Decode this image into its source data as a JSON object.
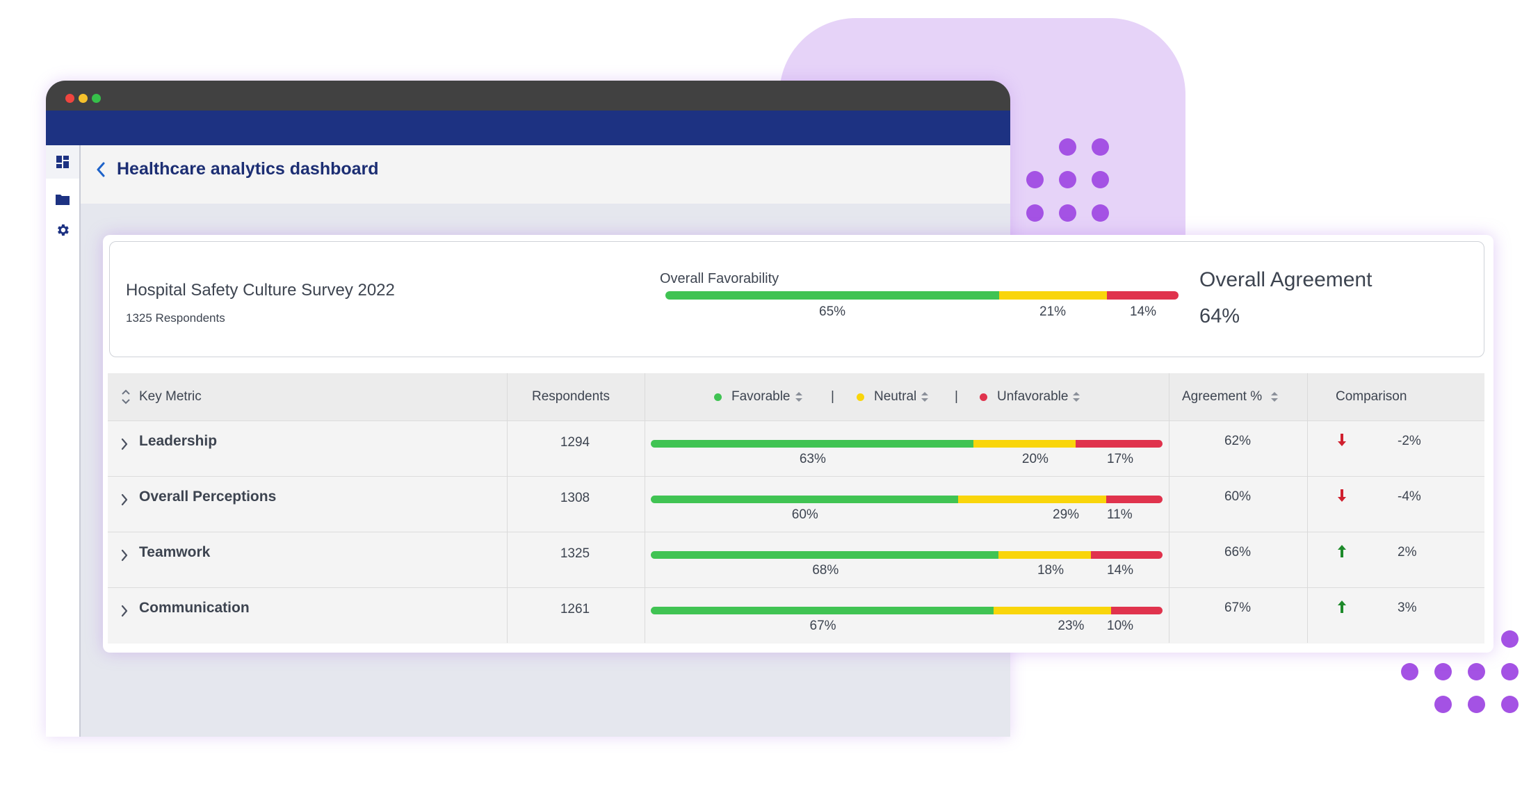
{
  "app": {
    "title": "Healthcare analytics dashboard"
  },
  "sidebar": {
    "items": [
      {
        "icon": "dashboard-icon"
      },
      {
        "icon": "folder-icon"
      },
      {
        "icon": "gear-icon"
      }
    ]
  },
  "summary": {
    "survey_title": "Hospital Safety Culture Survey 2022",
    "respondents": "1325 Respondents",
    "favorability_label": "Overall Favorability",
    "favorable": 65,
    "neutral": 21,
    "unfavorable": 14,
    "favorable_pct": "65%",
    "neutral_pct": "21%",
    "unfavorable_pct": "14%",
    "agreement_label": "Overall Agreement",
    "agreement_value": "64%"
  },
  "table": {
    "headers": {
      "metric": "Key Metric",
      "respondents": "Respondents",
      "favorable": "Favorable",
      "separator": "|",
      "neutral": "Neutral",
      "unfavorable": "Unfavorable",
      "agreement": "Agreement %",
      "comparison": "Comparison"
    },
    "rows": [
      {
        "metric": "Leadership",
        "respondents": "1294",
        "favorable": 63,
        "neutral": 20,
        "unfavorable": 17,
        "favorable_pct": "63%",
        "neutral_pct": "20%",
        "unfavorable_pct": "17%",
        "agreement": "62%",
        "trend": "down",
        "comparison": "-2%"
      },
      {
        "metric": "Overall Perceptions",
        "respondents": "1308",
        "favorable": 60,
        "neutral": 29,
        "unfavorable": 11,
        "favorable_pct": "60%",
        "neutral_pct": "29%",
        "unfavorable_pct": "11%",
        "agreement": "60%",
        "trend": "down",
        "comparison": "-4%"
      },
      {
        "metric": "Teamwork",
        "respondents": "1325",
        "favorable": 68,
        "neutral": 18,
        "unfavorable": 14,
        "favorable_pct": "68%",
        "neutral_pct": "18%",
        "unfavorable_pct": "14%",
        "agreement": "66%",
        "trend": "up",
        "comparison": "2%"
      },
      {
        "metric": "Communication",
        "respondents": "1261",
        "favorable": 67,
        "neutral": 23,
        "unfavorable": 10,
        "favorable_pct": "67%",
        "neutral_pct": "23%",
        "unfavorable_pct": "10%",
        "agreement": "67%",
        "trend": "up",
        "comparison": "3%"
      }
    ]
  },
  "colors": {
    "favorable": "#40c353",
    "neutral": "#f9d50b",
    "unfavorable": "#e0334d",
    "brand": "#1d3282",
    "trend_down": "#d0202e",
    "trend_up": "#1d8a2a"
  }
}
